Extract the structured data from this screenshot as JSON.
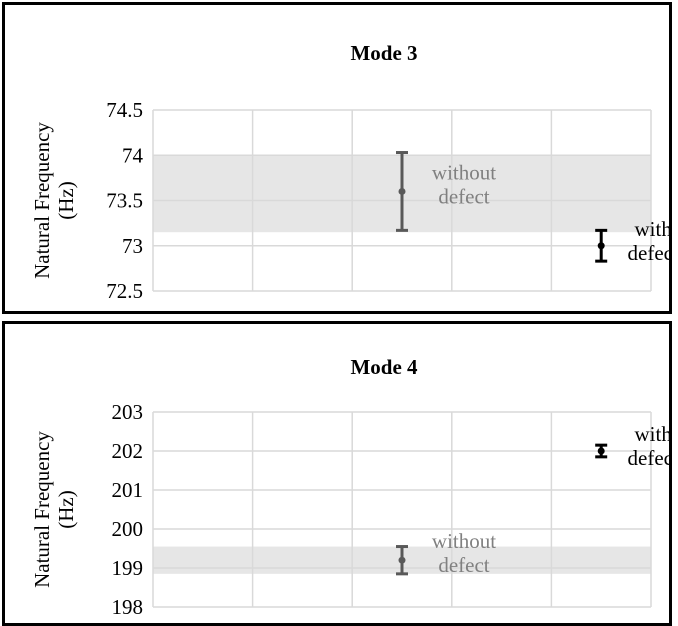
{
  "chart_data": [
    {
      "type": "scatter",
      "title": "Mode 3",
      "ylabel": "Natural Frequency (Hz)",
      "ylabel_lines": [
        "Natural Frequency",
        "(Hz)"
      ],
      "xlabel": "",
      "ylim": [
        72.5,
        74.5
      ],
      "yticks": [
        72.5,
        73,
        73.5,
        74,
        74.5
      ],
      "ytick_labels": [
        "72.5",
        "73",
        "73.5",
        "74",
        "74.5"
      ],
      "x_categories": 5,
      "grid": true,
      "band": [
        73.15,
        74.0
      ],
      "band_color": "#e6e6e6",
      "points": [
        {
          "x": 3,
          "y": 73.6,
          "err_low": 73.17,
          "err_high": 74.03,
          "label_lines": [
            "without",
            "defect"
          ],
          "color": "#595959",
          "label_color": "#808080"
        },
        {
          "x": 5,
          "y": 73.0,
          "err_low": 72.83,
          "err_high": 73.17,
          "label_lines": [
            "with",
            "defect"
          ],
          "color": "#000000",
          "label_color": "#000000"
        }
      ]
    },
    {
      "type": "scatter",
      "title": "Mode 4",
      "ylabel": "Natural Frequency (Hz)",
      "ylabel_lines": [
        "Natural Frequency",
        "(Hz)"
      ],
      "xlabel": "",
      "ylim": [
        198,
        203
      ],
      "yticks": [
        198,
        199,
        200,
        201,
        202,
        203
      ],
      "ytick_labels": [
        "198",
        "199",
        "200",
        "201",
        "202",
        "203"
      ],
      "x_categories": 5,
      "grid": true,
      "band": [
        198.85,
        199.55
      ],
      "band_color": "#e6e6e6",
      "points": [
        {
          "x": 3,
          "y": 199.2,
          "err_low": 198.85,
          "err_high": 199.55,
          "label_lines": [
            "without",
            "defect"
          ],
          "color": "#595959",
          "label_color": "#808080"
        },
        {
          "x": 5,
          "y": 202.0,
          "err_low": 201.85,
          "err_high": 202.15,
          "label_lines": [
            "with",
            "defect"
          ],
          "color": "#000000",
          "label_color": "#000000"
        }
      ]
    }
  ]
}
